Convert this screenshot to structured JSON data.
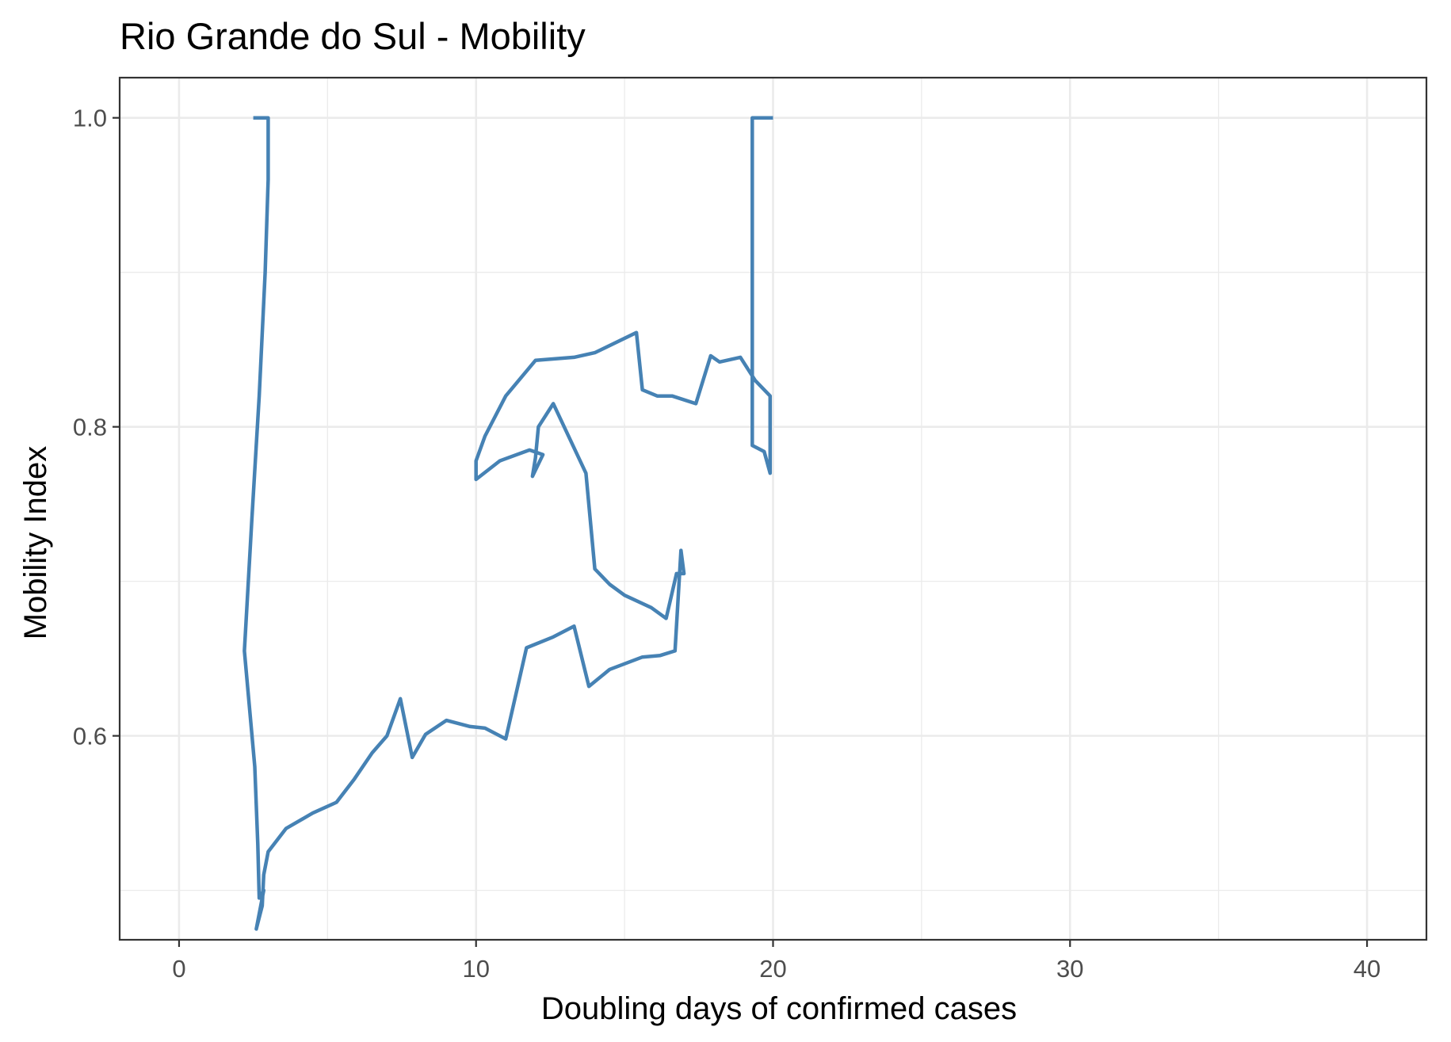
{
  "chart_data": {
    "type": "line",
    "title": "Rio Grande do Sul - Mobility",
    "xlabel": "Doubling days of confirmed cases",
    "ylabel": "Mobility Index",
    "xlim": [
      -2,
      42
    ],
    "ylim": [
      0.468,
      1.026
    ],
    "x_ticks": [
      0,
      10,
      20,
      30,
      40
    ],
    "x_tick_labels": [
      "0",
      "10",
      "20",
      "30",
      "40"
    ],
    "x_minor_ticks": [
      5,
      15,
      25,
      35
    ],
    "y_ticks": [
      0.6,
      0.8,
      1.0
    ],
    "y_tick_labels": [
      "0.6",
      "0.8",
      "1.0"
    ],
    "y_minor_ticks": [
      0.5,
      0.7,
      0.9
    ],
    "grid": true,
    "legend": "none",
    "series_color": "#4682b4",
    "series": [
      {
        "points": [
          [
            2.5,
            1.0
          ],
          [
            3.0,
            1.0
          ],
          [
            3.0,
            0.96
          ],
          [
            2.9,
            0.9
          ],
          [
            2.7,
            0.82
          ],
          [
            2.45,
            0.74
          ],
          [
            2.2,
            0.655
          ],
          [
            2.55,
            0.58
          ],
          [
            2.65,
            0.53
          ],
          [
            2.7,
            0.495
          ],
          [
            2.85,
            0.5
          ],
          [
            2.8,
            0.495
          ],
          [
            2.6,
            0.475
          ],
          [
            2.8,
            0.49
          ],
          [
            2.85,
            0.51
          ],
          [
            3.0,
            0.525
          ],
          [
            3.6,
            0.54
          ],
          [
            4.5,
            0.55
          ],
          [
            5.3,
            0.557
          ],
          [
            5.9,
            0.572
          ],
          [
            6.5,
            0.589
          ],
          [
            7.0,
            0.6
          ],
          [
            7.45,
            0.624
          ],
          [
            7.85,
            0.586
          ],
          [
            8.3,
            0.601
          ],
          [
            9.0,
            0.61
          ],
          [
            9.8,
            0.606
          ],
          [
            10.3,
            0.605
          ],
          [
            11.0,
            0.598
          ],
          [
            11.7,
            0.657
          ],
          [
            12.6,
            0.664
          ],
          [
            13.3,
            0.671
          ],
          [
            13.8,
            0.632
          ],
          [
            14.5,
            0.643
          ],
          [
            15.6,
            0.651
          ],
          [
            16.2,
            0.652
          ],
          [
            16.7,
            0.655
          ],
          [
            16.9,
            0.72
          ],
          [
            17.0,
            0.705
          ],
          [
            16.75,
            0.705
          ],
          [
            16.4,
            0.676
          ],
          [
            15.9,
            0.683
          ],
          [
            15.0,
            0.691
          ],
          [
            14.5,
            0.698
          ],
          [
            14.0,
            0.708
          ],
          [
            13.7,
            0.77
          ],
          [
            12.6,
            0.815
          ],
          [
            12.1,
            0.8
          ],
          [
            12.0,
            0.78
          ],
          [
            11.9,
            0.768
          ],
          [
            12.25,
            0.782
          ],
          [
            11.8,
            0.785
          ],
          [
            10.8,
            0.778
          ],
          [
            10.0,
            0.766
          ],
          [
            10.0,
            0.778
          ],
          [
            10.3,
            0.794
          ],
          [
            11.0,
            0.82
          ],
          [
            12.0,
            0.843
          ],
          [
            13.3,
            0.845
          ],
          [
            14.0,
            0.848
          ],
          [
            15.4,
            0.861
          ],
          [
            15.6,
            0.824
          ],
          [
            16.1,
            0.82
          ],
          [
            16.6,
            0.82
          ],
          [
            17.4,
            0.815
          ],
          [
            17.9,
            0.846
          ],
          [
            18.2,
            0.842
          ],
          [
            18.9,
            0.845
          ],
          [
            19.4,
            0.83
          ],
          [
            19.9,
            0.82
          ],
          [
            19.9,
            0.77
          ],
          [
            19.7,
            0.784
          ],
          [
            19.3,
            0.788
          ],
          [
            19.3,
            1.0
          ],
          [
            20.0,
            1.0
          ]
        ]
      }
    ]
  }
}
